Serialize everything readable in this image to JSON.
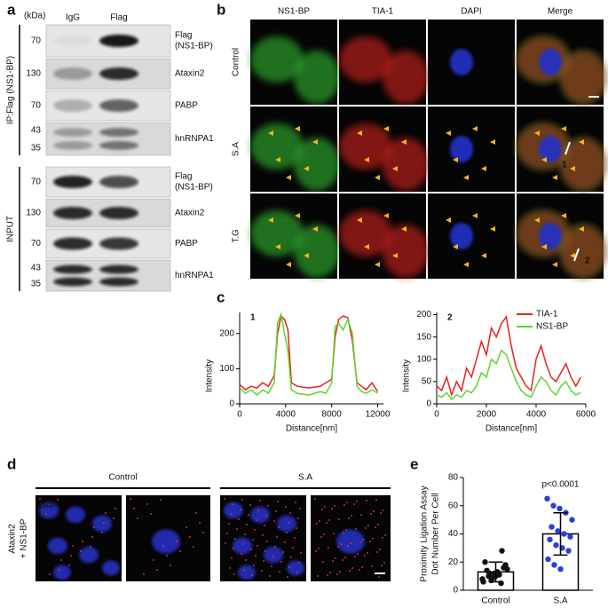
{
  "panel_a": {
    "label": "a",
    "unit": "(kDa)",
    "lanes": [
      "IgG",
      "Flag"
    ],
    "groups": [
      {
        "label": "IP:Flag (NS1-BP)",
        "rows": [
          {
            "name": [
              "Flag",
              "(NS1-BP)"
            ],
            "markers": [
              70
            ]
          },
          {
            "name": [
              "Ataxin2"
            ],
            "markers": [
              130
            ]
          },
          {
            "name": [
              "PABP"
            ],
            "markers": [
              70
            ]
          },
          {
            "name": [
              "hnRNPA1"
            ],
            "markers": [
              43,
              35
            ]
          }
        ]
      },
      {
        "label": "INPUT",
        "rows": [
          {
            "name": [
              "Flag",
              "(NS1-BP)"
            ],
            "markers": [
              70
            ]
          },
          {
            "name": [
              "Ataxin2"
            ],
            "markers": [
              130
            ]
          },
          {
            "name": [
              "PABP"
            ],
            "markers": [
              70
            ]
          },
          {
            "name": [
              "hnRNPA1"
            ],
            "markers": [
              43,
              35
            ]
          }
        ]
      }
    ]
  },
  "panel_b": {
    "label": "b",
    "columns": [
      "NS1-BP",
      "TIA-1",
      "DAPI",
      "Merge"
    ],
    "column_colors": [
      "#2fbf3a",
      "#e0342c",
      "#3d55d6",
      "#222222"
    ],
    "rows": [
      "Control",
      "S.A",
      "T.G"
    ],
    "arrows": [
      "1",
      "2"
    ]
  },
  "panel_c": {
    "label": "c",
    "chart_data": [
      {
        "type": "line",
        "title": "1",
        "xlabel": "Distance[nm]",
        "ylabel": "Intensity",
        "x": [
          0,
          500,
          1000,
          1500,
          2000,
          2500,
          3000,
          3300,
          3600,
          3900,
          4200,
          4500,
          5000,
          6000,
          7000,
          7500,
          8000,
          8300,
          8600,
          9000,
          9400,
          9800,
          10200,
          10600,
          11000,
          11500,
          12000
        ],
        "series": [
          {
            "name": "TIA-1",
            "color": "#e8221c",
            "values": [
              55,
              40,
              50,
              45,
              60,
              50,
              80,
              200,
              250,
              240,
              210,
              60,
              50,
              45,
              50,
              60,
              70,
              190,
              240,
              250,
              245,
              180,
              60,
              50,
              40,
              60,
              35
            ]
          },
          {
            "name": "NS1-BP",
            "color": "#5ad82e",
            "values": [
              45,
              30,
              40,
              25,
              40,
              30,
              60,
              230,
              255,
              200,
              150,
              40,
              30,
              25,
              35,
              30,
              60,
              220,
              230,
              210,
              240,
              200,
              50,
              35,
              30,
              40,
              30
            ]
          }
        ],
        "xlim": [
          0,
          12500
        ],
        "xticks": [
          0,
          4000,
          8000,
          12000
        ],
        "ylim": [
          0,
          260
        ],
        "yticks": [
          0,
          100,
          200
        ],
        "legend": null
      },
      {
        "type": "line",
        "title": "2",
        "xlabel": "Distance[nm]",
        "ylabel": "Intensity",
        "x": [
          0,
          200,
          400,
          600,
          800,
          1000,
          1200,
          1400,
          1600,
          1800,
          2000,
          2200,
          2400,
          2600,
          2800,
          3000,
          3200,
          3400,
          3600,
          3800,
          4000,
          4200,
          4400,
          4600,
          4800,
          5000,
          5200,
          5400,
          5600,
          5800
        ],
        "series": [
          {
            "name": "TIA-1",
            "color": "#e8221c",
            "values": [
              40,
              30,
              60,
              20,
              50,
              30,
              80,
              60,
              100,
              140,
              110,
              170,
              150,
              180,
              195,
              130,
              80,
              60,
              40,
              30,
              100,
              130,
              90,
              60,
              50,
              70,
              90,
              60,
              40,
              60
            ]
          },
          {
            "name": "NS1-BP",
            "color": "#5ad82e",
            "values": [
              20,
              15,
              25,
              10,
              20,
              15,
              30,
              25,
              40,
              70,
              60,
              100,
              90,
              120,
              110,
              80,
              50,
              30,
              20,
              15,
              40,
              60,
              50,
              30,
              20,
              40,
              50,
              30,
              20,
              25
            ]
          }
        ],
        "xlim": [
          0,
          6000
        ],
        "xticks": [
          0,
          2000,
          4000,
          6000
        ],
        "ylim": [
          0,
          205
        ],
        "yticks": [
          0,
          50,
          100,
          150,
          200
        ],
        "legend": "upper right"
      }
    ]
  },
  "panel_d": {
    "label": "d",
    "groups": [
      "Control",
      "S.A"
    ],
    "side_label": [
      "Ataxin2",
      "+ NS1-BP"
    ],
    "stain": "DAPI"
  },
  "panel_e": {
    "label": "e",
    "chart_data": {
      "type": "bar",
      "ylabel": [
        "Proximity Ligation Assay",
        "Dot Number Per Cell"
      ],
      "categories": [
        "Control",
        "S.A"
      ],
      "values": [
        13,
        40
      ],
      "errors": [
        7,
        15
      ],
      "point_colors": [
        "#111111",
        "#2b3fd6"
      ],
      "points": [
        [
          8,
          10,
          12,
          5,
          15,
          14,
          9,
          11,
          18,
          20,
          7,
          13,
          16,
          6,
          12,
          10,
          28
        ],
        [
          65,
          60,
          58,
          55,
          50,
          45,
          42,
          40,
          38,
          36,
          32,
          30,
          28,
          22,
          18,
          15
        ]
      ],
      "annotation": "p<0.0001",
      "ylim": [
        0,
        80
      ],
      "yticks": [
        0,
        20,
        40,
        60,
        80
      ]
    }
  }
}
